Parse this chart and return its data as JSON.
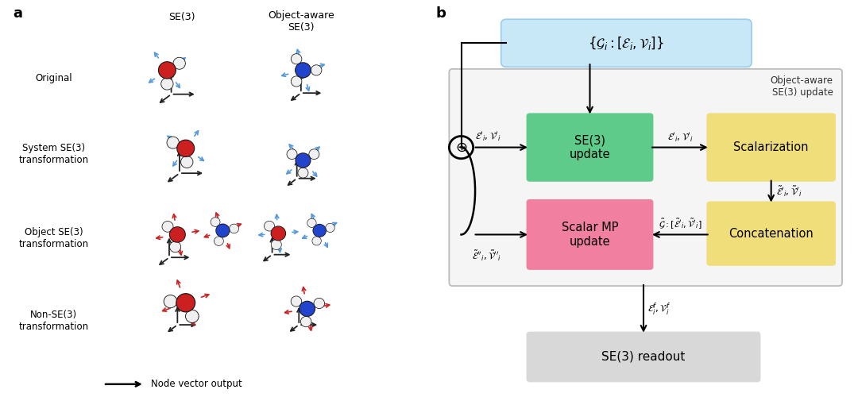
{
  "panel_a_label": "a",
  "panel_b_label": "b",
  "bg_color": "#ffffff",
  "row_labels": [
    "Original",
    "System SE(3)\ntransformation",
    "Object SE(3)\ntransformation",
    "Non-SE(3)\ntransformation"
  ],
  "col_header_se3": "SE(3)",
  "col_header_obj": "Object-aware\nSE(3)",
  "legend_text": "Node vector output",
  "box_input_color": "#c8e8f8",
  "box_se3_color": "#5ecb8a",
  "box_scalar_color": "#f07fa0",
  "box_scalarization_color": "#f0de7a",
  "box_concat_color": "#f0de7a",
  "box_readout_color": "#d8d8d8",
  "object_aware_label": "Object-aware\nSE(3) update",
  "se3_update_text": "SE(3)\nupdate",
  "scalar_mp_text": "Scalar MP\nupdate",
  "scalarization_text": "Scalarization",
  "concatenation_text": "Concatenation",
  "readout_text": "SE(3) readout"
}
